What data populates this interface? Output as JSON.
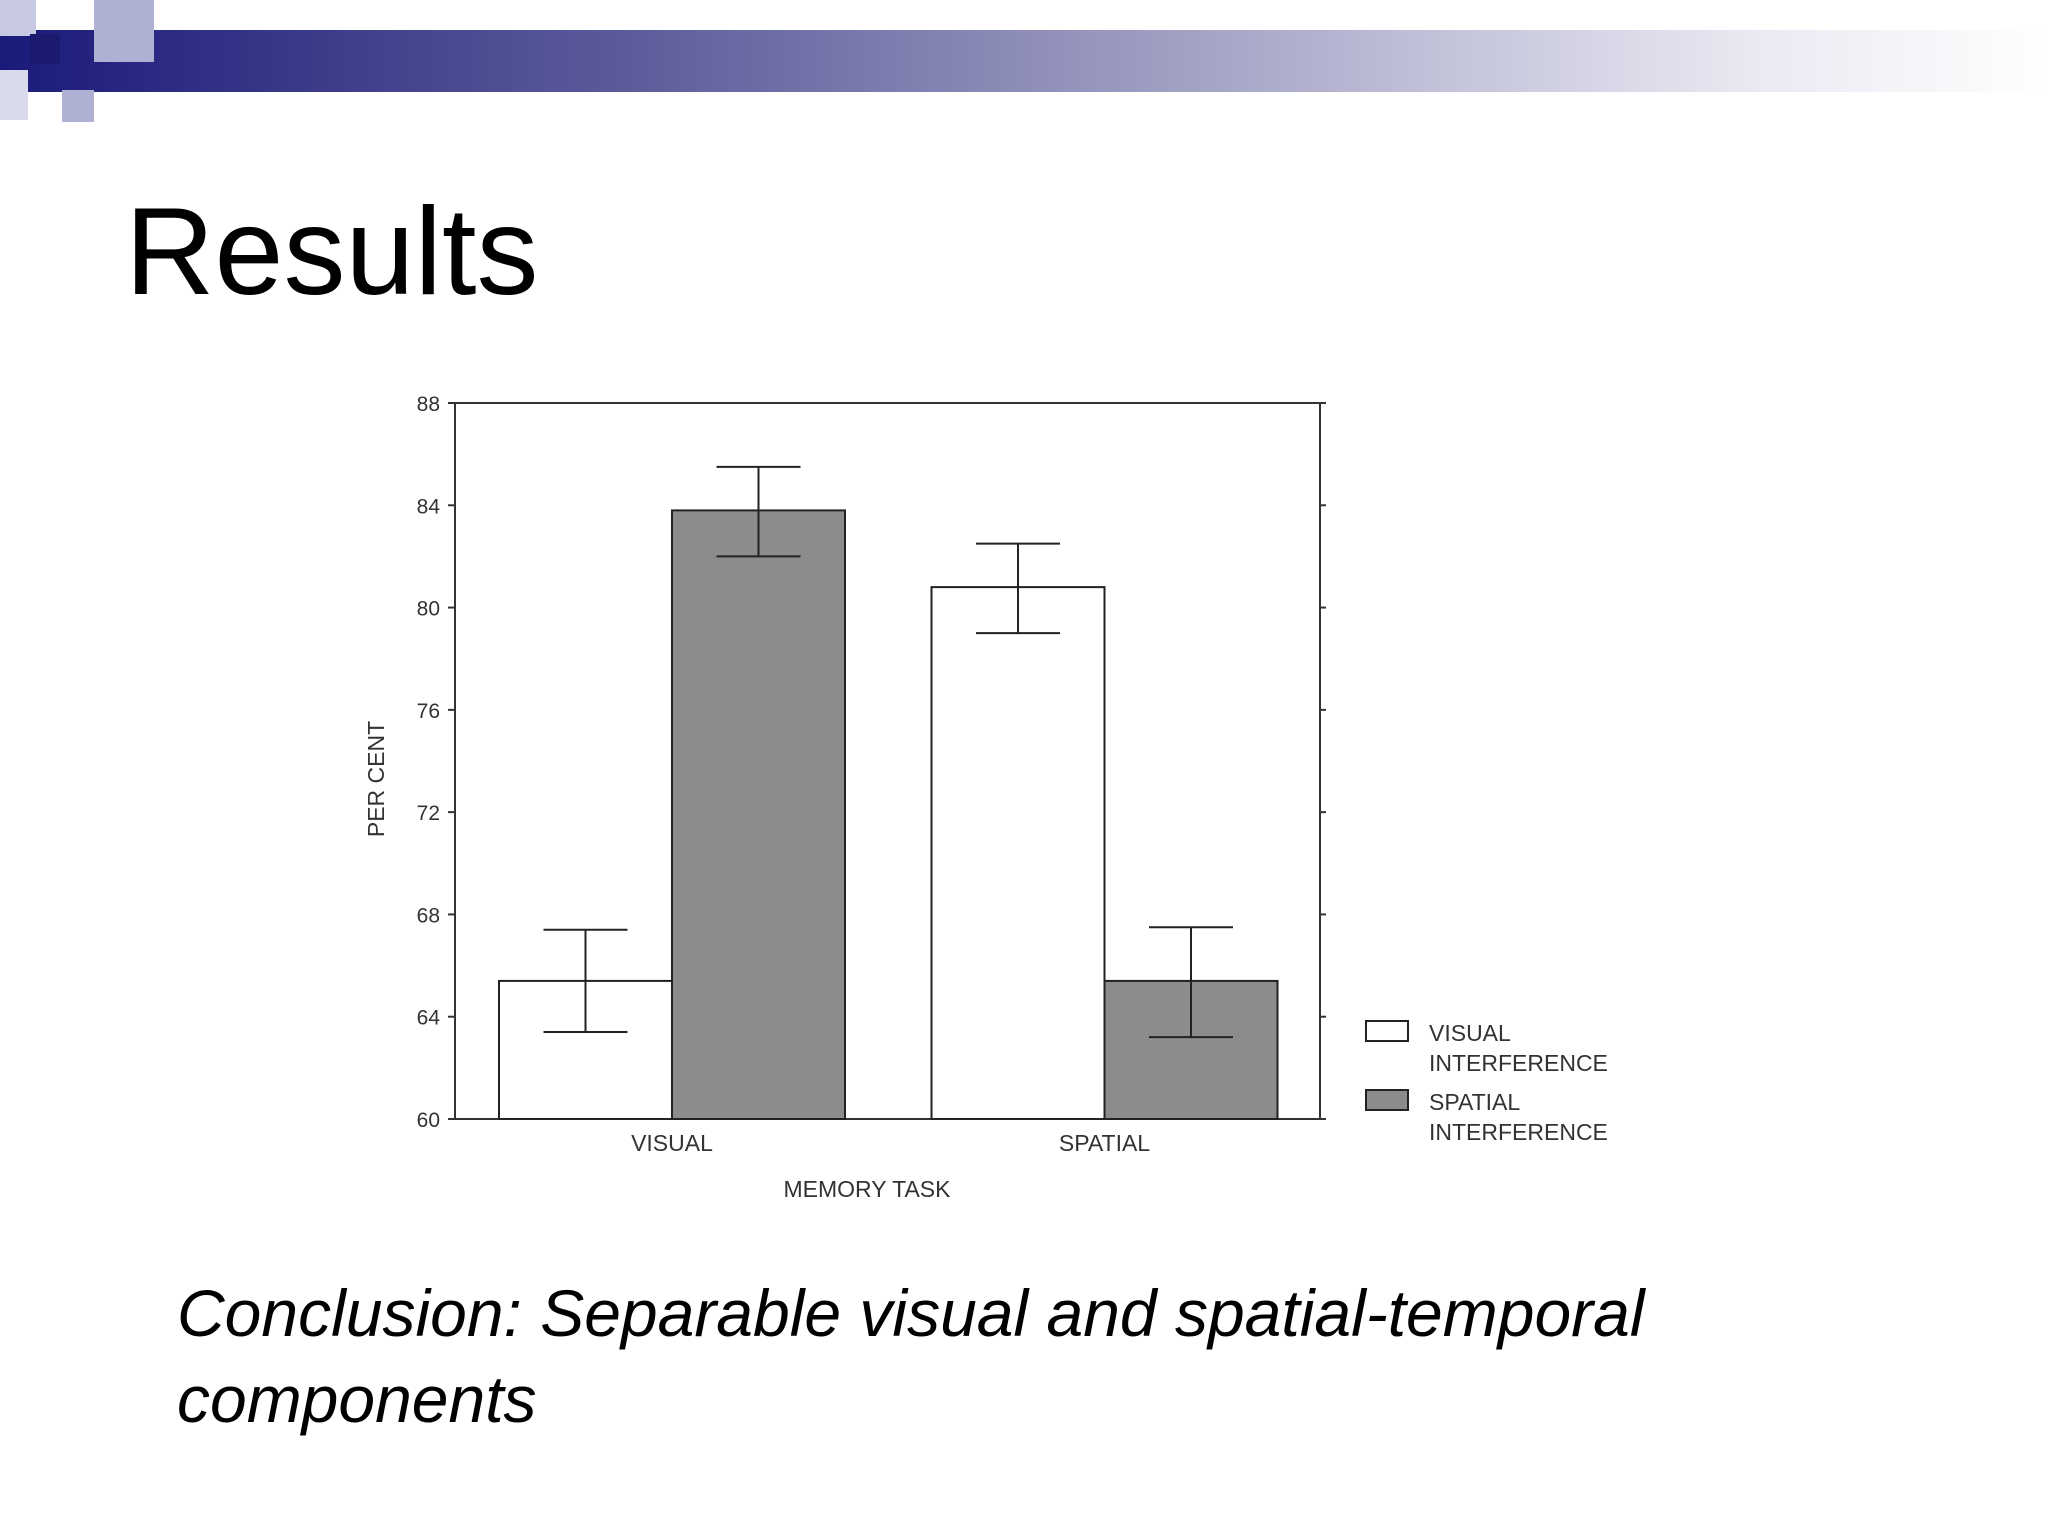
{
  "slide": {
    "title": "Results",
    "conclusion": "Conclusion:  Separable visual and spatial-temporal components"
  },
  "colors": {
    "header_dark": "#1a1a7a",
    "header_light": "#e8e8f2",
    "deco_dark": "#1a1a6e",
    "deco_light": "#aeb0d4",
    "bar_white": "#ffffff",
    "bar_gray": "#8c8c8c",
    "axis": "#333333"
  },
  "chart_data": {
    "type": "bar",
    "categories": [
      "VISUAL",
      "SPATIAL"
    ],
    "series": [
      {
        "name": "VISUAL INTERFERENCE",
        "legend_lines": [
          "VISUAL",
          "INTERFERENCE"
        ],
        "values": [
          65.4,
          80.8
        ],
        "error_low": [
          63.4,
          79.0
        ],
        "error_high": [
          67.4,
          82.5
        ]
      },
      {
        "name": "SPATIAL INTERFERENCE",
        "legend_lines": [
          "SPATIAL",
          "INTERFERENCE"
        ],
        "values": [
          83.8,
          65.4
        ],
        "error_low": [
          82.0,
          63.2
        ],
        "error_high": [
          85.5,
          67.5
        ]
      }
    ],
    "xlabel": "MEMORY TASK",
    "ylabel": "PER CENT",
    "ylim": [
      60,
      88
    ],
    "yticks": [
      60,
      64,
      68,
      72,
      76,
      80,
      84,
      88
    ],
    "legend_position": "right"
  }
}
